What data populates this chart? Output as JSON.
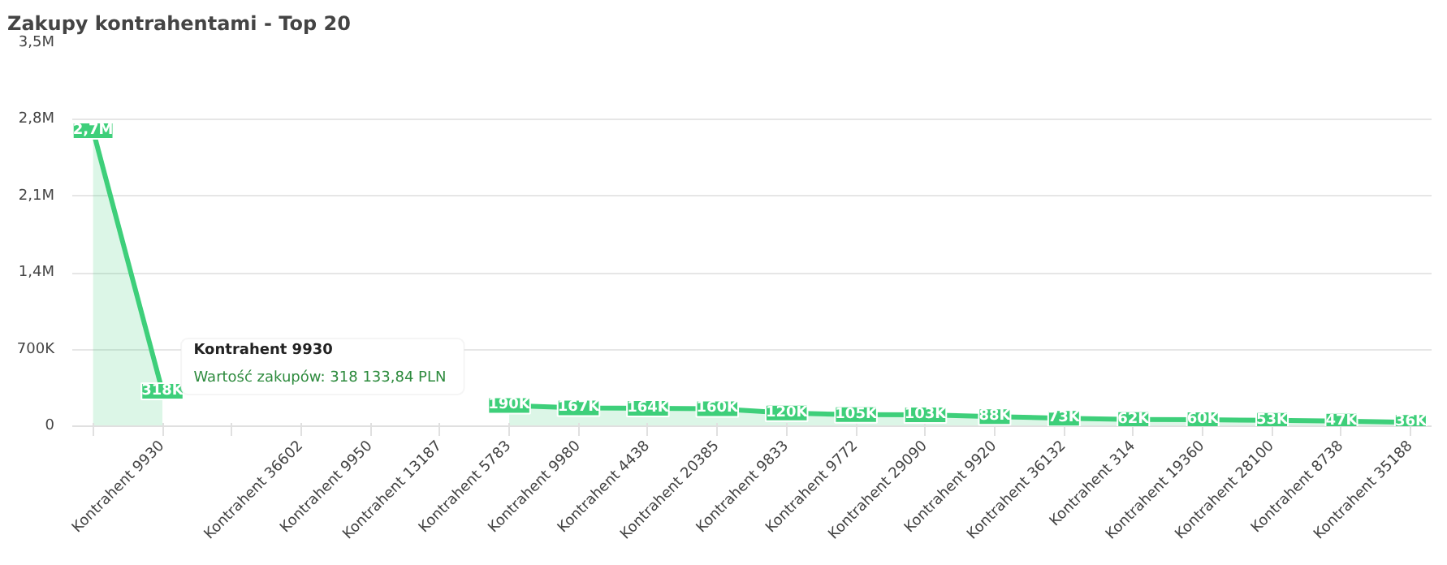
{
  "chart_data": {
    "type": "area",
    "title": "Zakupy kontrahentami - Top 20",
    "categories": [
      null,
      "Kontrahent 9930",
      null,
      "Kontrahent 36602",
      "Kontrahent 9950",
      "Kontrahent 13187",
      "Kontrahent 5783",
      "Kontrahent 9980",
      "Kontrahent 4438",
      "Kontrahent 20385",
      "Kontrahent 9833",
      "Kontrahent 9772",
      "Kontrahent 29090",
      "Kontrahent 9920",
      "Kontrahent 36132",
      "Kontrahent 314",
      "Kontrahent 19360",
      "Kontrahent 28100",
      "Kontrahent 8738",
      "Kontrahent 35188"
    ],
    "series": [
      {
        "color": "#3ecf7a",
        "values": [
          2700000,
          318133.84,
          null,
          null,
          null,
          null,
          190000,
          167000,
          164000,
          160000,
          120000,
          105000,
          103000,
          88000,
          73000,
          62000,
          60000,
          53000,
          47000,
          36000
        ],
        "value_labels": [
          "2,7M",
          "318K",
          null,
          null,
          null,
          null,
          "190K",
          "167K",
          "164K",
          "160K",
          "120K",
          "105K",
          "103K",
          "88K",
          "73K",
          "62K",
          "60K",
          "53K",
          "47K",
          "36K"
        ]
      }
    ],
    "ylim": [
      0,
      3500000
    ],
    "yticks": [
      {
        "value": 0,
        "label": "0"
      },
      {
        "value": 700000,
        "label": "700K"
      },
      {
        "value": 1400000,
        "label": "1,4M"
      },
      {
        "value": 2100000,
        "label": "2,1M"
      },
      {
        "value": 2800000,
        "label": "2,8M"
      },
      {
        "value": 3500000,
        "label": "3,5M"
      }
    ],
    "grid": "y",
    "annotations": [
      "Kontrahent 9930",
      "Wartość zakupów: 318 133,84 PLN"
    ]
  }
}
